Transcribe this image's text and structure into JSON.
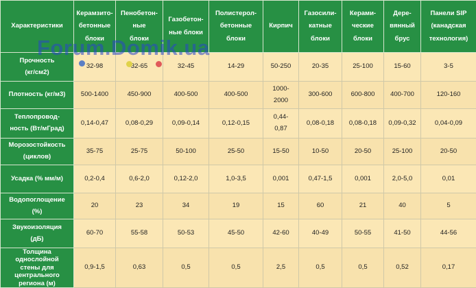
{
  "watermark": "Forum.Domik.ua",
  "colors": {
    "header_bg": "#279044",
    "cell_bg": "#fbe7b5",
    "watermark": "#2846c8"
  },
  "header": {
    "characteristic": "Характеристики",
    "columns": [
      "Керамзито-\nбетонные\nблоки",
      "Пенобетон-\nные\nблоки",
      "Газобетон-\nные блоки",
      "Полистерол-\nбетонные\nблоки",
      "Кирпич",
      "Газосили-\nкатные\nблоки",
      "Керами-\nческие\nблоки",
      "Дере-\nвянный\nбрус",
      "Панели SIP\n(канадская\nтехнология)"
    ]
  },
  "rows": [
    {
      "label": "Прочность\n(кг/см2)",
      "values": [
        "32-98",
        "32-65",
        "32-45",
        "14-29",
        "50-250",
        "20-35",
        "25-100",
        "15-60",
        "3-5"
      ]
    },
    {
      "label": "Плотность (кг/м3)",
      "values": [
        "500-1400",
        "450-900",
        "400-500",
        "400-500",
        "1000-\n2000",
        "300-600",
        "600-800",
        "400-700",
        "120-160"
      ]
    },
    {
      "label": "Теплопровод-\nность (Вт/мГрад)",
      "values": [
        "0,14-0,47",
        "0,08-0,29",
        "0,09-0,14",
        "0,12-0,15",
        "0,44-\n0,87",
        "0,08-0,18",
        "0,08-0,18",
        "0,09-0,32",
        "0,04-0,09"
      ]
    },
    {
      "label": "Морозостойкость\n(циклов)",
      "values": [
        "35-75",
        "25-75",
        "50-100",
        "25-50",
        "15-50",
        "10-50",
        "20-50",
        "25-100",
        "20-50"
      ]
    },
    {
      "label": "Усадка (% мм/м)",
      "values": [
        "0,2-0,4",
        "0,6-2,0",
        "0,12-2,0",
        "1,0-3,5",
        "0,001",
        "0,47-1,5",
        "0,001",
        "2,0-5,0",
        "0,01"
      ]
    },
    {
      "label": "Водопоглощение\n(%)",
      "values": [
        "20",
        "23",
        "34",
        "19",
        "15",
        "60",
        "21",
        "40",
        "5"
      ]
    },
    {
      "label": "Звукоизоляция\n(дБ)",
      "values": [
        "60-70",
        "55-58",
        "50-53",
        "45-50",
        "42-60",
        "40-49",
        "50-55",
        "41-50",
        "44-56"
      ]
    },
    {
      "label": "Толщина\nоднослойной\nстены для\nцентрального\nрегиона (м)",
      "values": [
        "0,9-1,5",
        "0,63",
        "0,5",
        "0,5",
        "2,5",
        "0,5",
        "0,5",
        "0,52",
        "0,17"
      ]
    }
  ]
}
